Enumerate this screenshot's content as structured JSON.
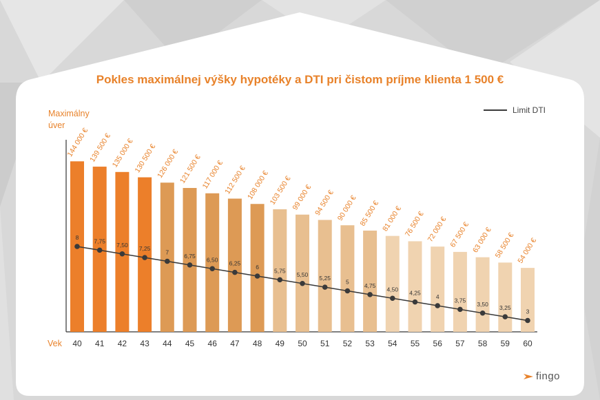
{
  "title": "Pokles maximálnej výšky hypotéky a DTI pri čistom príjme klienta 1 500 €",
  "y_axis_label_line1": "Maximálny",
  "y_axis_label_line2": "úver",
  "x_axis_label": "Vek",
  "legend_label": "Limit DTI",
  "brand_text": "fingo",
  "colors": {
    "accent": "#e8822a",
    "bar_dark": "#ec7f2a",
    "bar_mid": "#dd9a55",
    "bar_light": "#e8bf90",
    "bar_lightest": "#f0d3b0",
    "line": "#3a3a3a"
  },
  "chart_data": {
    "type": "bar",
    "categories": [
      "40",
      "41",
      "42",
      "43",
      "44",
      "45",
      "46",
      "47",
      "48",
      "49",
      "50",
      "51",
      "52",
      "53",
      "54",
      "55",
      "56",
      "57",
      "58",
      "59",
      "60"
    ],
    "values": [
      144000,
      139500,
      135000,
      130500,
      126000,
      121500,
      117000,
      112500,
      108000,
      103500,
      99000,
      94500,
      90000,
      85500,
      81000,
      76500,
      72000,
      67500,
      63000,
      58500,
      54000
    ],
    "value_labels": [
      "144 000 €",
      "139 500 €",
      "135 000 €",
      "130 500 €",
      "126 000 €",
      "121 500 €",
      "117 000 €",
      "112 500 €",
      "108 000 €",
      "103 500 €",
      "99 000 €",
      "94 500 €",
      "90 000 €",
      "85 500 €",
      "81 000 €",
      "76 500 €",
      "72 000 €",
      "67 500 €",
      "63 000 €",
      "58 500 €",
      "54 000 €"
    ],
    "color_groups": [
      "dark",
      "dark",
      "dark",
      "dark",
      "mid",
      "mid",
      "mid",
      "mid",
      "mid",
      "light",
      "light",
      "light",
      "light",
      "light",
      "lightest",
      "lightest",
      "lightest",
      "lightest",
      "lightest",
      "lightest",
      "lightest"
    ],
    "dti_series": {
      "name": "Limit DTI",
      "values": [
        8,
        7.75,
        7.5,
        7.25,
        7,
        6.75,
        6.5,
        6.25,
        6,
        5.75,
        5.5,
        5.25,
        5,
        4.75,
        4.5,
        4.25,
        4,
        3.75,
        3.5,
        3.25,
        3
      ],
      "labels": [
        "8",
        "7,75",
        "7,50",
        "7,25",
        "7",
        "6,75",
        "6,50",
        "6,25",
        "6",
        "5,75",
        "5,50",
        "5,25",
        "5",
        "4,75",
        "4,50",
        "4,25",
        "4",
        "3,75",
        "3,50",
        "3,25",
        "3"
      ]
    }
  }
}
